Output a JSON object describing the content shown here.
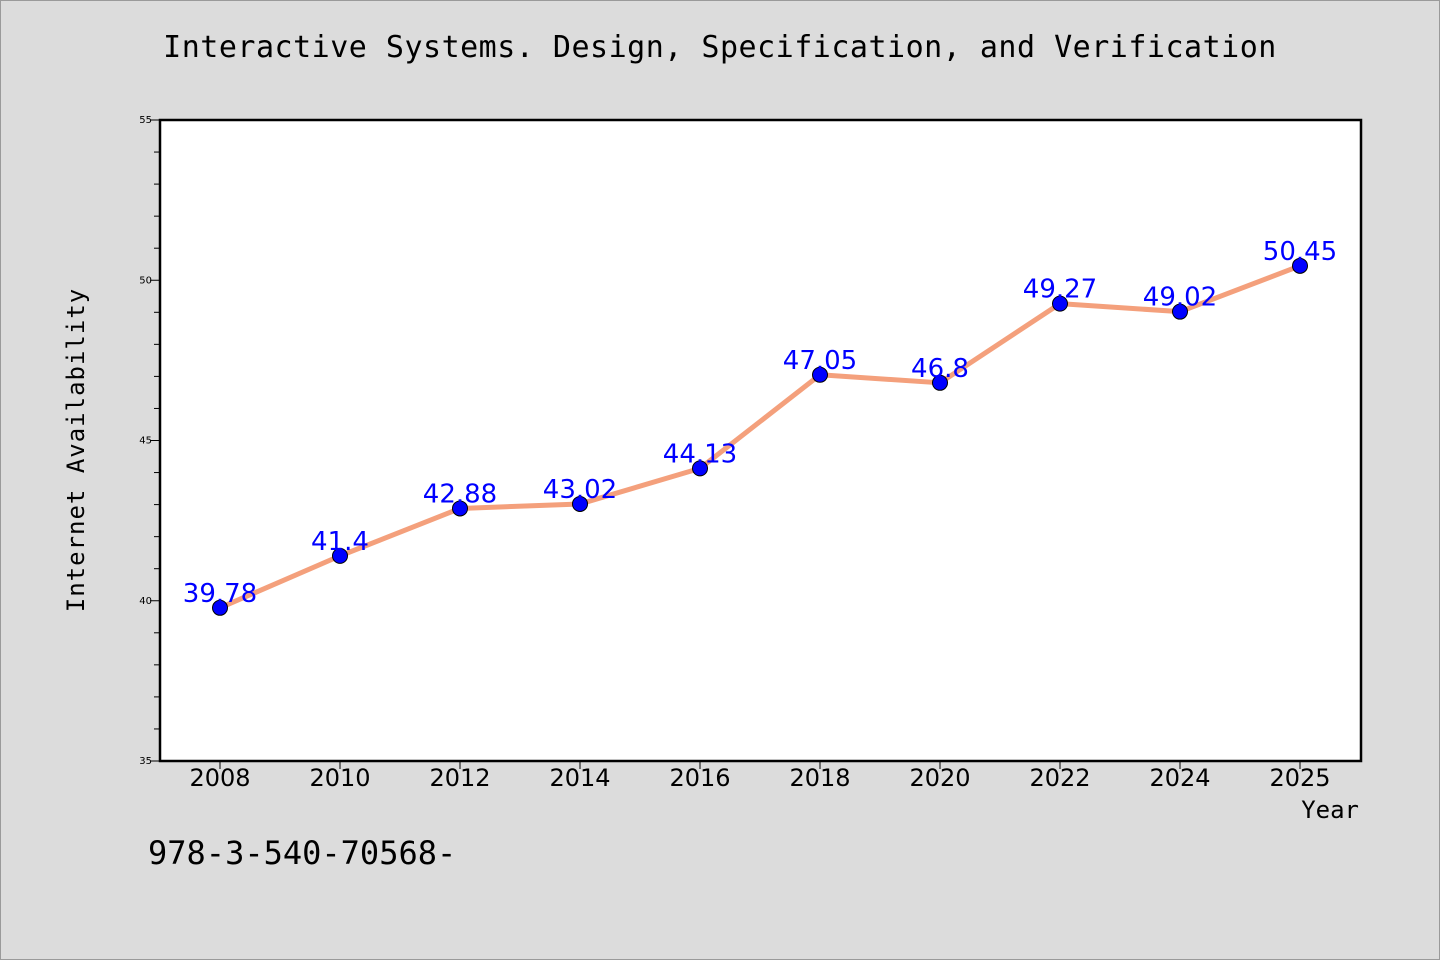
{
  "chart_data": {
    "type": "line",
    "title": "Interactive Systems. Design, Specification, and Verification",
    "xlabel": "Year",
    "ylabel": "Internet Availability",
    "note": "978-3-540-70568-",
    "x": [
      "2008",
      "2010",
      "2012",
      "2014",
      "2016",
      "2018",
      "2020",
      "2022",
      "2024",
      "2025"
    ],
    "series": [
      {
        "values": [
          39.78,
          41.4,
          42.88,
          43.02,
          44.13,
          47.05,
          46.8,
          49.27,
          49.02,
          50.45
        ],
        "labels": [
          "39.78",
          "41.4",
          "42.88",
          "43.02",
          "44.13",
          "47.05",
          "46.8",
          "49.27",
          "49.02",
          "50.45"
        ],
        "line_color": "#f4a07c",
        "marker_color": "#0000ff"
      }
    ],
    "ylim": [
      35,
      55
    ],
    "y_ticks": [
      "35",
      "40",
      "45",
      "50",
      "55"
    ],
    "grid": false,
    "legend": "none",
    "background": "#dcdcdc",
    "plot_background": "#ffffff"
  }
}
